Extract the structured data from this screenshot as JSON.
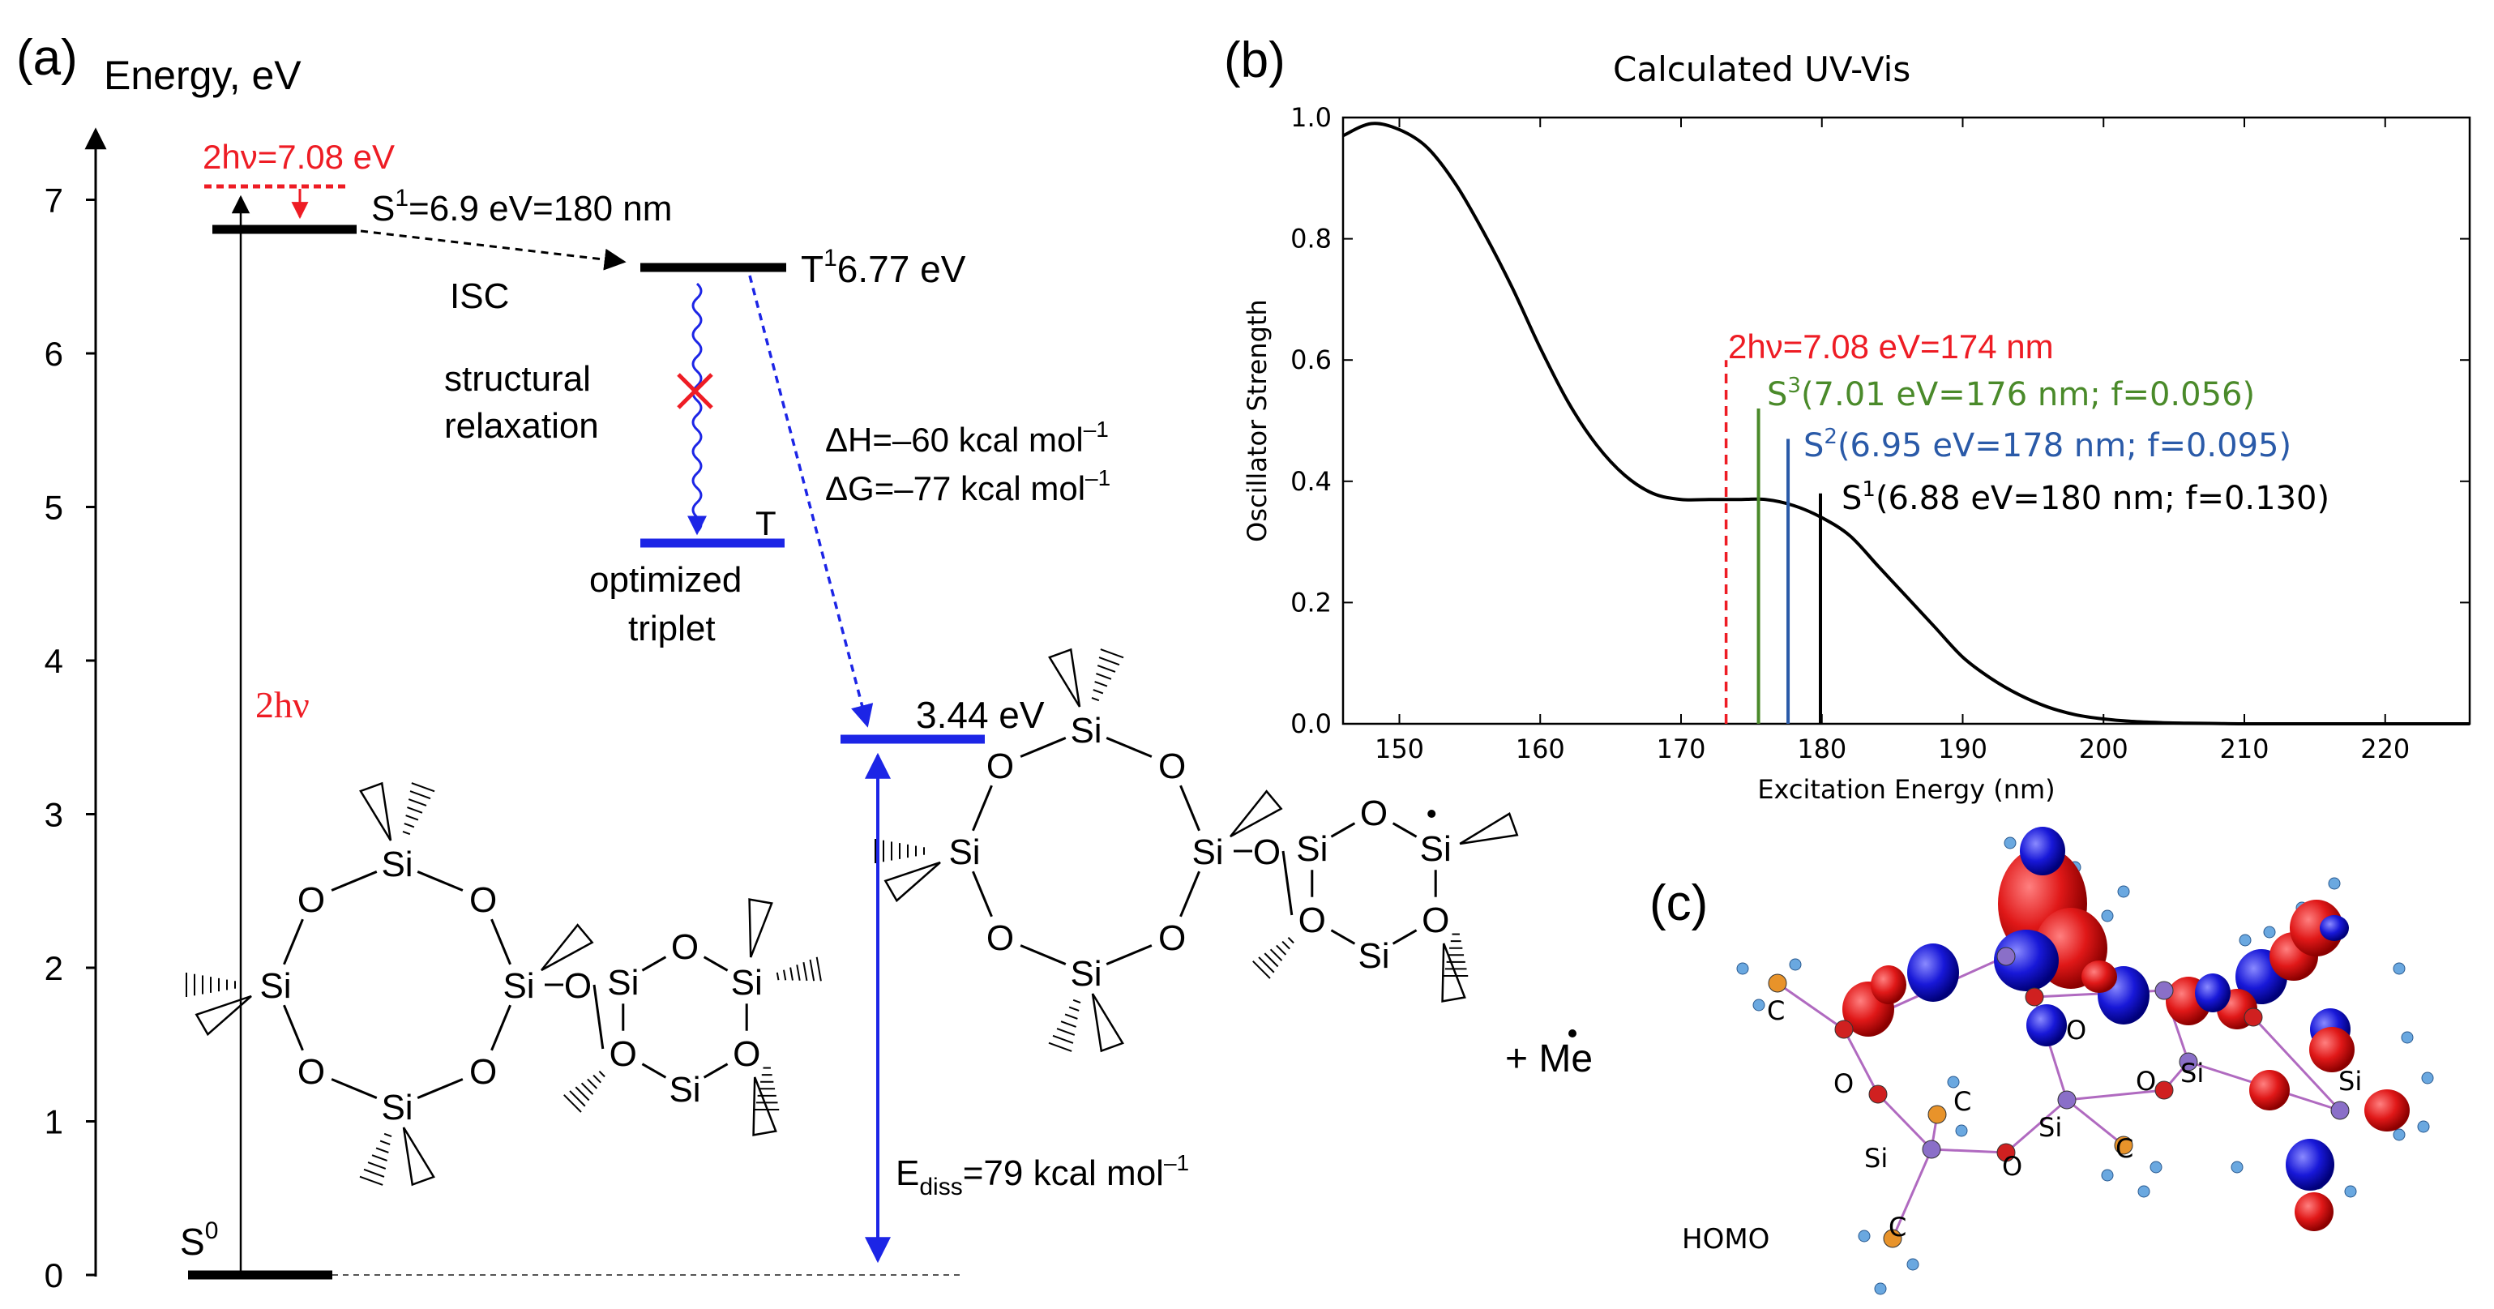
{
  "panel_a": {
    "label": "(a)",
    "axis_title": "Energy, eV",
    "ticks": [
      "0",
      "1",
      "2",
      "3",
      "4",
      "5",
      "6",
      "7"
    ],
    "two_hv_label": "2hν=7.08 eV",
    "s1_label_pre": "S",
    "s1_label_sup": "1",
    "s1_label_post": "=6.9 eV=180 nm",
    "isc_label": "ISC",
    "t1_label_pre": "T",
    "t1_label_sup": "1",
    "t1_label_post": "6.77 eV",
    "relax_line1": "structural",
    "relax_line2": "relaxation",
    "dh_label_pre": "ΔH=–60 kcal mol",
    "dh_label_sup": "–1",
    "dg_label_pre": "ΔG=–77 kcal mol",
    "dg_label_sup": "–1",
    "t_label": "T",
    "opt_line1": "optimized",
    "opt_line2": "triplet",
    "level_344": "3.44 eV",
    "two_hv_big": "2hν",
    "s0_pre": "S",
    "s0_sup": "0",
    "ediss_pre": "E",
    "ediss_sub": "diss",
    "ediss_post": "=79 kcal mol",
    "ediss_sup": "–1",
    "plus_me": "+ Me",
    "atom_si": "Si",
    "atom_o": "O",
    "colors": {
      "red": "#ee1c24",
      "blue": "#1c25e6",
      "black": "#000000"
    }
  },
  "panel_b": {
    "label": "(b)",
    "title": "Calculated UV-Vis",
    "xlabel": "Excitation Energy (nm)",
    "ylabel": "Oscillator Strength",
    "annot_2hv": "2hν=7.08 eV=174 nm",
    "annot_s3_pre": "S",
    "annot_s3_sup": "3",
    "annot_s3_post": "(7.01 eV=176 nm; f=0.056)",
    "annot_s2_pre": "S",
    "annot_s2_sup": "2",
    "annot_s2_post": "(6.95 eV=178 nm; f=0.095)",
    "annot_s1_pre": "S",
    "annot_s1_sup": "1",
    "annot_s1_post": "(6.88 eV=180 nm; f=0.130)"
  },
  "panel_c": {
    "label": "(c)",
    "homo": "HOMO",
    "atom_c": "C",
    "atom_o": "O",
    "atom_si": "Si"
  },
  "chart_data": {
    "type": "line",
    "title": "Calculated UV-Vis",
    "xlabel": "Excitation Energy (nm)",
    "ylabel": "Oscillator Strength",
    "xlim": [
      146,
      226
    ],
    "ylim": [
      0.0,
      1.0
    ],
    "x_ticks": [
      150,
      160,
      170,
      180,
      190,
      200,
      210,
      220
    ],
    "y_ticks": [
      0.0,
      0.2,
      0.4,
      0.6,
      0.8,
      1.0
    ],
    "series": [
      {
        "name": "spectrum",
        "color": "#000000",
        "x": [
          146,
          148,
          150,
          152,
          154,
          156,
          158,
          160,
          162,
          164,
          166,
          168,
          170,
          172,
          174,
          176,
          178,
          180,
          182,
          184,
          186,
          188,
          190,
          192,
          194,
          196,
          198,
          200,
          202,
          204,
          206,
          208,
          210,
          215,
          220,
          226
        ],
        "y": [
          0.97,
          0.99,
          0.98,
          0.95,
          0.89,
          0.81,
          0.72,
          0.62,
          0.53,
          0.46,
          0.41,
          0.38,
          0.37,
          0.37,
          0.37,
          0.37,
          0.36,
          0.34,
          0.31,
          0.26,
          0.21,
          0.16,
          0.11,
          0.075,
          0.048,
          0.028,
          0.015,
          0.008,
          0.004,
          0.002,
          0.001,
          0.0005,
          0.0,
          0.0,
          0.0,
          0.0
        ]
      }
    ],
    "sticks": [
      {
        "name": "2hν",
        "x": 173.2,
        "y": 0.6,
        "color": "#ee1c24",
        "dashed": true
      },
      {
        "name": "S3",
        "x": 175.5,
        "y": 0.52,
        "color": "#4a8a2a",
        "dashed": false
      },
      {
        "name": "S2",
        "x": 177.6,
        "y": 0.47,
        "color": "#2a5aa8",
        "dashed": false
      },
      {
        "name": "S1",
        "x": 179.9,
        "y": 0.38,
        "color": "#000000",
        "dashed": false
      }
    ],
    "energy_levels_eV": {
      "two_hv": 7.08,
      "S1": 6.9,
      "T1": 6.77,
      "optimized_triplet": 4.9,
      "products": 3.44,
      "S0": 0.0
    }
  }
}
